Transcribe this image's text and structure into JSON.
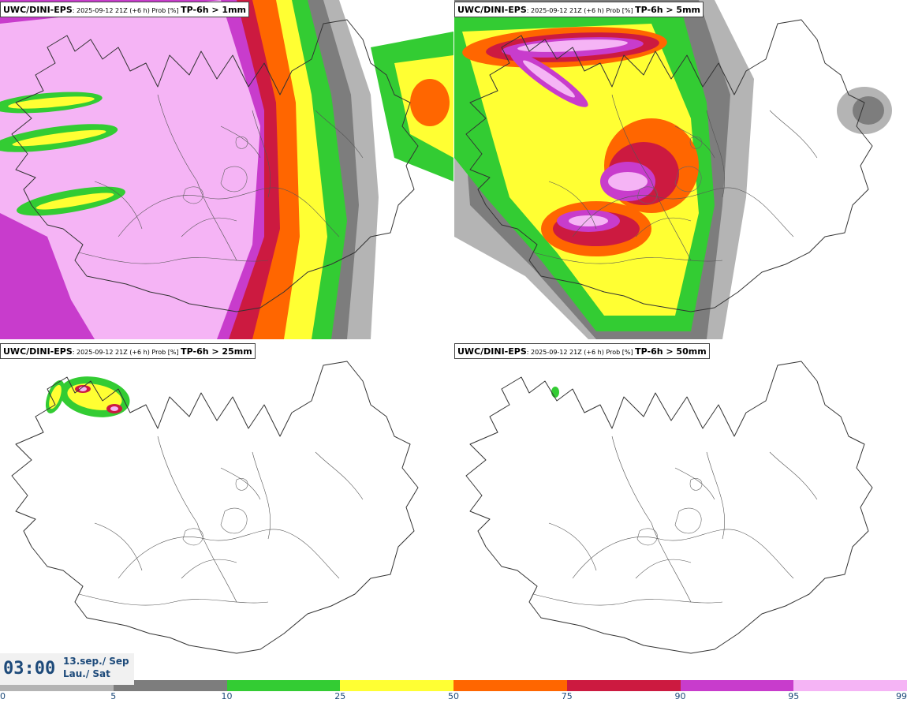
{
  "panels": [
    {
      "model": "UWC/DINI-EPS",
      "run": ": 2025-09-12 21Z (+6 h) Prob [%] ",
      "variable": "TP-6h > 1mm"
    },
    {
      "model": "UWC/DINI-EPS",
      "run": ": 2025-09-12 21Z (+6 h) Prob [%] ",
      "variable": "TP-6h > 5mm"
    },
    {
      "model": "UWC/DINI-EPS",
      "run": ": 2025-09-12 21Z (+6 h) Prob [%] ",
      "variable": "TP-6h > 25mm"
    },
    {
      "model": "UWC/DINI-EPS",
      "run": ": 2025-09-12 21Z (+6 h) Prob [%] ",
      "variable": "TP-6h > 50mm"
    }
  ],
  "valid_time": {
    "clock": "03:00",
    "date_line1": "13.sep./ Sep",
    "date_line2": "Lau./ Sat"
  },
  "colorbar": {
    "ticks": [
      "0",
      "5",
      "10",
      "25",
      "50",
      "75",
      "90",
      "95",
      "99"
    ],
    "colors": [
      "#ffffff",
      "#b4b4b4",
      "#7d7d7d",
      "#33cc33",
      "#ffff33",
      "#ff6600",
      "#cc1a40",
      "#c83ccc",
      "#f5b4f5"
    ]
  }
}
